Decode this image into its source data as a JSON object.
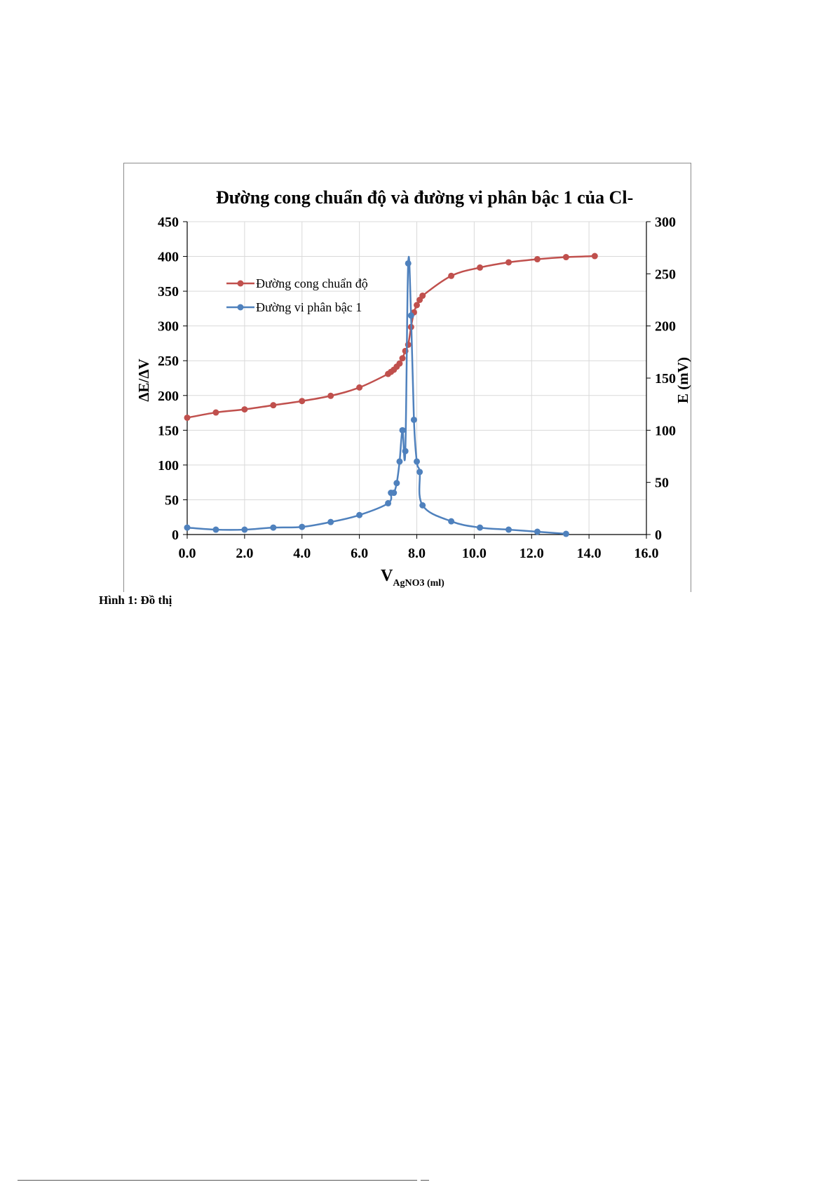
{
  "caption": "Hình 1: Đồ thị",
  "chart_data": {
    "type": "line",
    "title": "Đường cong chuẩn độ và đường vi phân bậc 1 của Cl-",
    "xlabel_main": "V",
    "xlabel_sub": "AgNO3 (ml)",
    "ylabel_left": "ΔE/ΔV",
    "ylabel_right": "E (mV)",
    "xlim": [
      0,
      16
    ],
    "ylim_left": [
      0,
      450
    ],
    "ylim_right": [
      0,
      300
    ],
    "x_ticks": [
      "0.0",
      "2.0",
      "4.0",
      "6.0",
      "8.0",
      "10.0",
      "12.0",
      "14.0",
      "16.0"
    ],
    "y_left_ticks": [
      "0",
      "50",
      "100",
      "150",
      "200",
      "250",
      "300",
      "350",
      "400",
      "450"
    ],
    "y_right_ticks": [
      "0",
      "50",
      "100",
      "150",
      "200",
      "250",
      "300"
    ],
    "grid": true,
    "legend_position": "top-left",
    "series": [
      {
        "name": "Đường cong chuẩn độ",
        "axis": "right",
        "color": "#c0504d",
        "x": [
          0,
          1,
          2,
          3,
          4,
          5,
          6,
          7,
          7.1,
          7.2,
          7.3,
          7.4,
          7.5,
          7.6,
          7.7,
          7.8,
          7.9,
          8.0,
          8.1,
          8.2,
          9.2,
          10.2,
          11.2,
          12.2,
          13.2,
          14.2
        ],
        "y": [
          112,
          117,
          120,
          124,
          128,
          133,
          141,
          154,
          156,
          158,
          161,
          164,
          169,
          176,
          182,
          199,
          213,
          220,
          225,
          229,
          248,
          256,
          261,
          264,
          266,
          267
        ]
      },
      {
        "name": "Đường vi phân bậc 1",
        "axis": "left",
        "color": "#4f81bd",
        "x": [
          0,
          1,
          2,
          3,
          4,
          5,
          6,
          7,
          7.1,
          7.2,
          7.3,
          7.4,
          7.5,
          7.6,
          7.7,
          7.8,
          7.9,
          8.0,
          8.1,
          8.2,
          9.2,
          10.2,
          11.2,
          12.2,
          13.2
        ],
        "y": [
          10,
          7,
          7,
          10,
          11,
          18,
          28,
          45,
          60,
          60,
          74,
          105,
          150,
          120,
          390,
          315,
          165,
          105,
          90,
          42,
          19,
          10,
          7,
          4,
          1
        ]
      }
    ]
  }
}
